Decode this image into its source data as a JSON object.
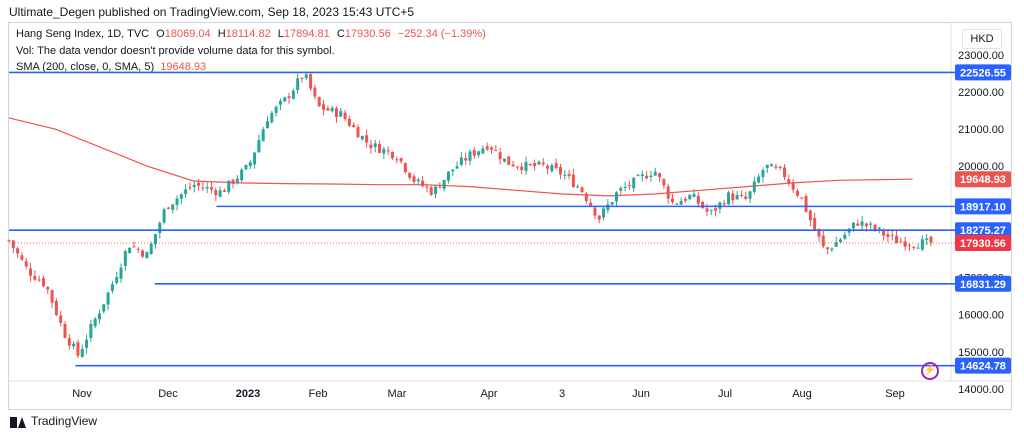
{
  "header": {
    "published": "Ultimate_Degen published on TradingView.com, Sep 18, 2023 15:43 UTC+5"
  },
  "legend": {
    "title": "Hang Seng Index, 1D, TVC",
    "ohlc": [
      {
        "key": "O",
        "value": "18069.04"
      },
      {
        "key": "H",
        "value": "18114.82"
      },
      {
        "key": "L",
        "value": "17894.81"
      },
      {
        "key": "C",
        "value": "17930.56"
      }
    ],
    "change": "−252.34 (−1.39%)",
    "vol_text": "Vol: The data vendor doesn't provide volume data for this symbol.",
    "sma_label": "SMA (200, close, 0, SMA, 5)",
    "sma_value": "19648.93"
  },
  "currency": "HKD",
  "footer": {
    "brand": "TradingView"
  },
  "colors": {
    "up": "#26a69a",
    "down": "#ef5350",
    "level": "#2962ff",
    "sma": "#f05252",
    "last": "#f23645"
  },
  "chart_data": {
    "type": "candlestick",
    "x_labels": [
      "Nov",
      "Dec",
      "2023",
      "Feb",
      "Mar",
      "Apr",
      "3",
      "Jun",
      "Jul",
      "Aug",
      "Sep"
    ],
    "y_ticks": [
      14000,
      15000,
      16000,
      17000,
      18000,
      19000,
      20000,
      21000,
      22000,
      23000
    ],
    "y_tick_labels": [
      "14000.00",
      "15000.00",
      "16000.00",
      "17000.00",
      "18000.00",
      "19000.00",
      "20000.00",
      "21000.00",
      "22000.00",
      "23000.00"
    ],
    "ylim": [
      13700,
      23400
    ],
    "horizontal_levels": [
      {
        "value": 22526.55,
        "label": "22526.55"
      },
      {
        "value": 18917.1,
        "label": "18917.10"
      },
      {
        "value": 18275.27,
        "label": "18275.27"
      },
      {
        "value": 16831.29,
        "label": "16831.29"
      },
      {
        "value": 14624.78,
        "label": "14624.78"
      }
    ],
    "last_price": {
      "value": 17930.56,
      "label": "17930.56"
    },
    "sma_last": {
      "value": 19648.93,
      "label": "19648.93"
    },
    "close_path": [
      [
        0,
        18000
      ],
      [
        0.02,
        17200
      ],
      [
        0.04,
        16800
      ],
      [
        0.06,
        15500
      ],
      [
        0.075,
        14900
      ],
      [
        0.09,
        15700
      ],
      [
        0.11,
        16700
      ],
      [
        0.13,
        17900
      ],
      [
        0.15,
        17600
      ],
      [
        0.17,
        18900
      ],
      [
        0.2,
        19500
      ],
      [
        0.23,
        19300
      ],
      [
        0.26,
        20000
      ],
      [
        0.28,
        21300
      ],
      [
        0.3,
        21800
      ],
      [
        0.32,
        22500
      ],
      [
        0.335,
        21600
      ],
      [
        0.36,
        21400
      ],
      [
        0.39,
        20600
      ],
      [
        0.42,
        20300
      ],
      [
        0.44,
        19600
      ],
      [
        0.46,
        19300
      ],
      [
        0.48,
        19900
      ],
      [
        0.5,
        20300
      ],
      [
        0.52,
        20600
      ],
      [
        0.54,
        20100
      ],
      [
        0.56,
        20000
      ],
      [
        0.58,
        20000
      ],
      [
        0.6,
        19800
      ],
      [
        0.62,
        19400
      ],
      [
        0.64,
        18600
      ],
      [
        0.66,
        19300
      ],
      [
        0.68,
        19600
      ],
      [
        0.7,
        19900
      ],
      [
        0.72,
        19000
      ],
      [
        0.74,
        19200
      ],
      [
        0.76,
        18700
      ],
      [
        0.78,
        19200
      ],
      [
        0.8,
        19100
      ],
      [
        0.82,
        20000
      ],
      [
        0.84,
        19800
      ],
      [
        0.86,
        19100
      ],
      [
        0.87,
        18500
      ],
      [
        0.885,
        17700
      ],
      [
        0.9,
        18000
      ],
      [
        0.92,
        18500
      ],
      [
        0.94,
        18300
      ],
      [
        0.96,
        18000
      ],
      [
        0.98,
        17930
      ]
    ],
    "sma_path": [
      [
        0,
        21300
      ],
      [
        0.05,
        21000
      ],
      [
        0.1,
        20500
      ],
      [
        0.15,
        20000
      ],
      [
        0.2,
        19600
      ],
      [
        0.25,
        19550
      ],
      [
        0.3,
        19530
      ],
      [
        0.35,
        19520
      ],
      [
        0.4,
        19500
      ],
      [
        0.45,
        19500
      ],
      [
        0.5,
        19450
      ],
      [
        0.55,
        19350
      ],
      [
        0.6,
        19250
      ],
      [
        0.65,
        19200
      ],
      [
        0.7,
        19250
      ],
      [
        0.75,
        19350
      ],
      [
        0.8,
        19450
      ],
      [
        0.85,
        19550
      ],
      [
        0.9,
        19620
      ],
      [
        0.98,
        19650
      ]
    ]
  }
}
